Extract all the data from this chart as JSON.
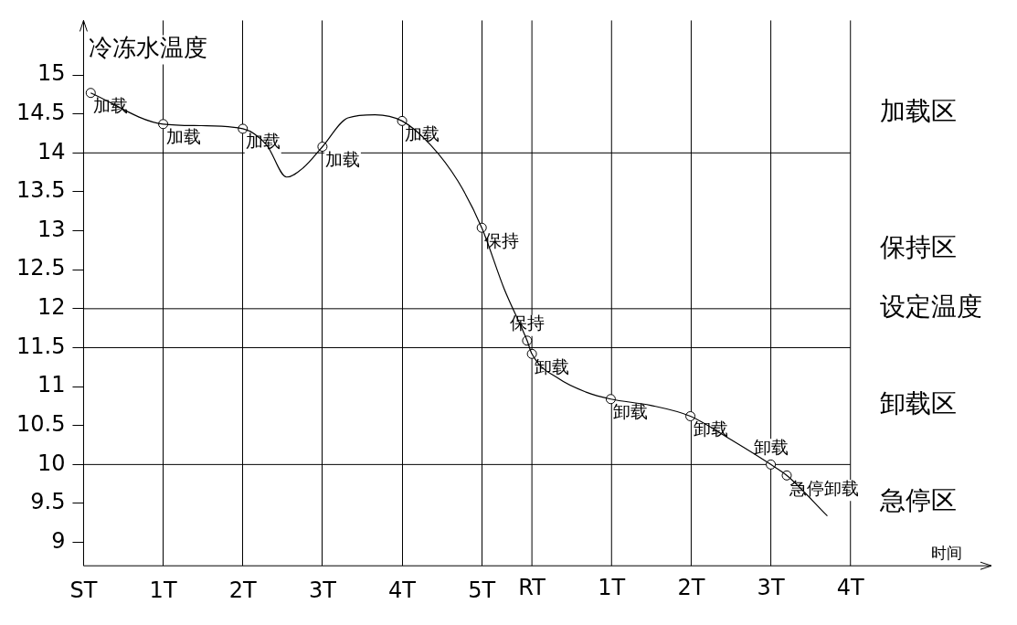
{
  "chart_data": {
    "type": "line",
    "xlabel": "时间",
    "ylabel": "冷冻水温度",
    "xlim": [
      0,
      11.4
    ],
    "ylim": [
      8.7,
      15.7
    ],
    "xticks": [
      {
        "value": 0,
        "label": "ST"
      },
      {
        "value": 1,
        "label": "1T"
      },
      {
        "value": 2,
        "label": "2T"
      },
      {
        "value": 3,
        "label": "3T"
      },
      {
        "value": 4,
        "label": "4T"
      },
      {
        "value": 5,
        "label": "5T"
      }
    ],
    "x2lim": [
      -5.63,
      5.77
    ],
    "x2ticks": [
      {
        "value": 0,
        "label": "RT"
      },
      {
        "value": 1,
        "label": "1T"
      },
      {
        "value": 2,
        "label": "2T"
      },
      {
        "value": 3,
        "label": "3T"
      },
      {
        "value": 4,
        "label": "4T"
      }
    ],
    "yticks": [
      9,
      9.5,
      10,
      10.5,
      11,
      11.5,
      12,
      12.5,
      13,
      13.5,
      14,
      14.5,
      15
    ],
    "grid": "x",
    "legend": false,
    "series": [
      {
        "type": "line",
        "color": "#000000",
        "marker": "none",
        "x": [
          0.09,
          1,
          1.48,
          2,
          2.3,
          2.55,
          2.76,
          3,
          3.32,
          3.66,
          4,
          4.36,
          4.7,
          5,
          5.28,
          5.57,
          5.63,
          5.97,
          6.31,
          6.62,
          7.12,
          7.62,
          8.16,
          8.63,
          8.83,
          9.34
        ],
        "values": [
          14.77,
          14.37,
          14.35,
          14.31,
          14.1,
          13.69,
          13.81,
          14.08,
          14.45,
          14.49,
          14.41,
          14.1,
          13.64,
          13.04,
          12.26,
          11.59,
          11.42,
          11.1,
          10.93,
          10.84,
          10.76,
          10.62,
          10.3,
          10.0,
          9.86,
          9.34
        ]
      },
      {
        "type": "scatter",
        "color": "#000000",
        "marker": "circle",
        "x": [
          0.09,
          1,
          2,
          3,
          4,
          5,
          5.57,
          5.63,
          6.62,
          7.62,
          8.63,
          8.83
        ],
        "values": [
          14.77,
          14.37,
          14.31,
          14.08,
          14.41,
          13.04,
          11.59,
          11.42,
          10.84,
          10.62,
          10.0,
          9.86
        ]
      }
    ],
    "ref_lines": [
      {
        "axis": "y",
        "value": 14,
        "label": null
      },
      {
        "axis": "y",
        "value": 12,
        "label": "设定温度"
      },
      {
        "axis": "y",
        "value": 11.5,
        "label": null
      },
      {
        "axis": "y",
        "value": 10,
        "label": null
      }
    ],
    "annotations": [
      {
        "text": "加载",
        "x": 0.09,
        "y": 14.77
      },
      {
        "text": "加载",
        "x": 1,
        "y": 14.37
      },
      {
        "text": "加载",
        "x": 2,
        "y": 14.31
      },
      {
        "text": "加载",
        "x": 3,
        "y": 14.08
      },
      {
        "text": "加载",
        "x": 4,
        "y": 14.41
      },
      {
        "text": "保持",
        "x": 5,
        "y": 13.04
      },
      {
        "text": "保持",
        "x": 5.57,
        "y": 11.59
      },
      {
        "text": "卸载",
        "x": 5.63,
        "y": 11.42
      },
      {
        "text": "卸载",
        "x": 6.62,
        "y": 10.84
      },
      {
        "text": "卸载",
        "x": 7.62,
        "y": 10.62
      },
      {
        "text": "卸载",
        "x": 8.63,
        "y": 10.0
      },
      {
        "text": "急停卸载",
        "x": 8.83,
        "y": 9.86
      },
      "加载区",
      "保持区",
      "卸载区",
      "急停区"
    ]
  }
}
